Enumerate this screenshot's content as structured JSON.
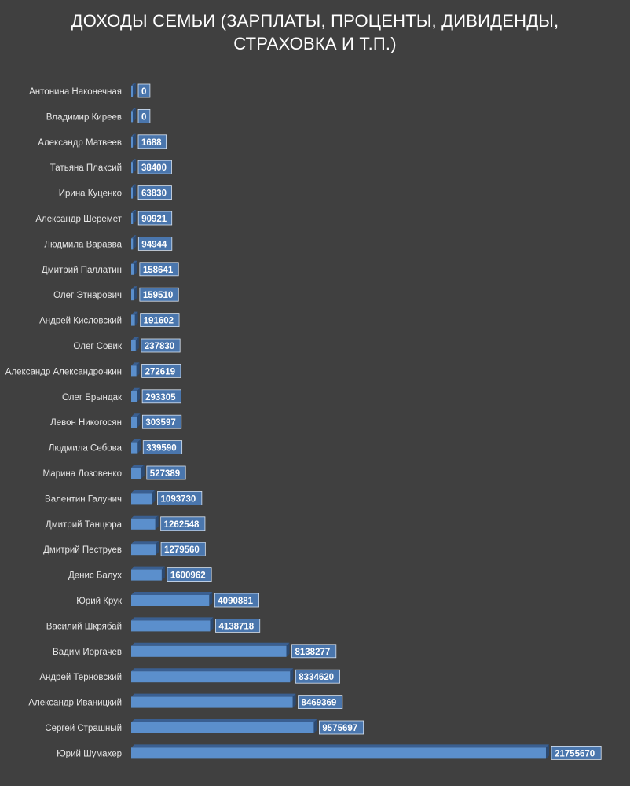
{
  "chart_data": {
    "type": "bar",
    "orientation": "horizontal",
    "style": "3d",
    "title_lines": [
      "ДОХОДЫ СЕМЬИ (ЗАРПЛАТЫ, ПРОЦЕНТЫ, ДИВИДЕНДЫ,",
      "СТРАХОВКА И Т.П.)"
    ],
    "categories": [
      "Антонина Наконечная",
      "Владимир Киреев",
      "Александр Матвеев",
      "Татьяна Плаксий",
      "Ирина Куценко",
      "Александр Шеремет",
      "Людмила Варавва",
      "Дмитрий Паллатин",
      "Олег Этнарович",
      "Андрей Кисловский",
      "Олег Совик",
      "Александр Александрочкин",
      "Олег Брындак",
      "Левон Никогосян",
      "Людмила Себова",
      "Марина Лозовенко",
      "Валентин Галунич",
      "Дмитрий Танцюра",
      "Дмитрий Пеструев",
      "Денис Балух",
      "Юрий Крук",
      "Василий Шкрябай",
      "Вадим Иоргачев",
      "Андрей Терновский",
      "Александр Иваницкий",
      "Сергей Страшный",
      "Юрий Шумахер"
    ],
    "values": [
      0,
      0,
      1688,
      38400,
      63830,
      90921,
      94944,
      158641,
      159510,
      191602,
      237830,
      272619,
      293305,
      303597,
      339590,
      527389,
      1093730,
      1262548,
      1279560,
      1600962,
      4090881,
      4138718,
      8138277,
      8334620,
      8469369,
      9575697,
      21755670
    ],
    "xlim": [
      0,
      22000000
    ],
    "grid": false,
    "legend": false,
    "colors": {
      "background": "#404040",
      "bar_front": "#5b8fcc",
      "bar_top": "#3a5f91",
      "bar_side": "#2c4a72",
      "label_box": "#4a76ad",
      "text": "#ffffff"
    }
  }
}
